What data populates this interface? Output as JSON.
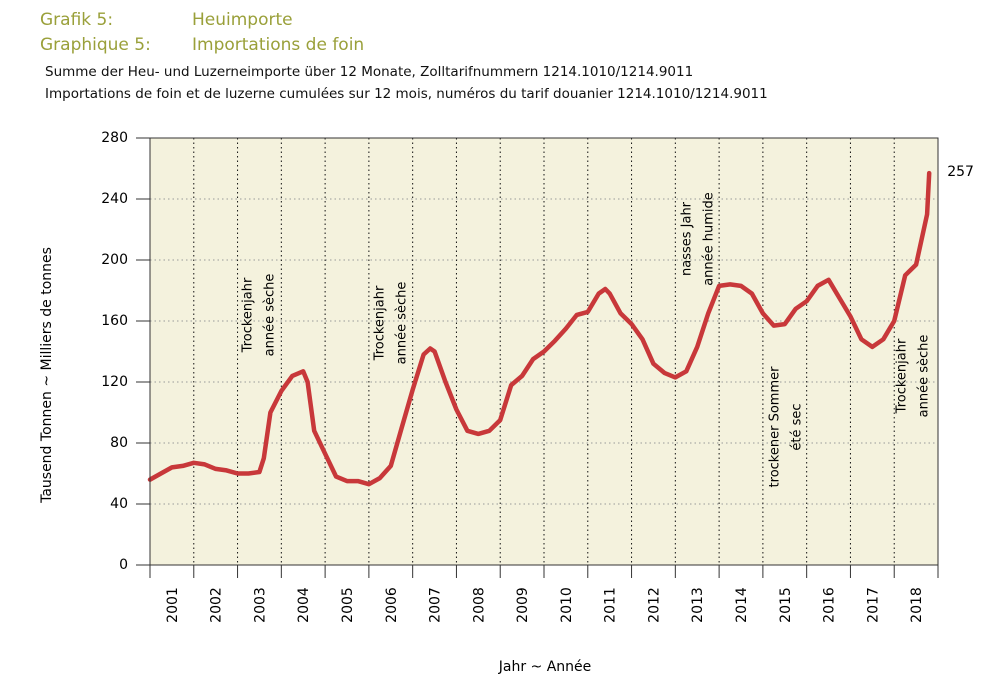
{
  "chart_data": {
    "type": "line",
    "title": [
      "Grafik 5:",
      "Heuimporte"
    ],
    "title2": [
      "Graphique 5:",
      "Importations de foin"
    ],
    "subtitle": [
      "Summe der Heu- und Luzerneimporte über 12 Monate, Zolltarifnummern 1214.1010/1214.9011",
      "Importations de foin et de luzerne cumulées sur 12 mois, numéros du tarif douanier 1214.1010/1214.9011"
    ],
    "y_label": "Tausend Tonnen  ~  Milliers de tonnes",
    "x_label": "Jahr  ~  Année",
    "categories": [
      "2001",
      "2002",
      "2003",
      "2004",
      "2005",
      "2006",
      "2007",
      "2008",
      "2009",
      "2010",
      "2011",
      "2012",
      "2013",
      "2014",
      "2015",
      "2016",
      "2017",
      "2018"
    ],
    "xlim": [
      2001,
      2019
    ],
    "ylim": [
      0,
      280
    ],
    "yticks": [
      0,
      40,
      80,
      120,
      160,
      200,
      240,
      280
    ],
    "grid": true,
    "annotations": [
      [
        "Trockenjahr",
        "année sèche"
      ],
      [
        "Trockenjahr",
        "année sèche"
      ],
      [
        "nasses Jahr",
        "année humide"
      ],
      [
        "trockener Sommer",
        "été sec"
      ],
      [
        "Trockenjahr",
        "année sèche"
      ]
    ],
    "series": [
      {
        "name": "Heuimporte",
        "color": "#c8383a",
        "x": [
          2001.0,
          2001.25,
          2001.5,
          2001.75,
          2002.0,
          2002.25,
          2002.5,
          2002.75,
          2003.0,
          2003.25,
          2003.5,
          2003.6,
          2003.75,
          2004.0,
          2004.25,
          2004.5,
          2004.6,
          2004.75,
          2005.0,
          2005.25,
          2005.5,
          2005.75,
          2006.0,
          2006.25,
          2006.5,
          2006.75,
          2007.0,
          2007.25,
          2007.4,
          2007.5,
          2007.75,
          2008.0,
          2008.25,
          2008.5,
          2008.75,
          2009.0,
          2009.25,
          2009.5,
          2009.75,
          2010.0,
          2010.25,
          2010.5,
          2010.75,
          2011.0,
          2011.25,
          2011.4,
          2011.5,
          2011.75,
          2012.0,
          2012.25,
          2012.5,
          2012.75,
          2013.0,
          2013.25,
          2013.5,
          2013.75,
          2014.0,
          2014.25,
          2014.5,
          2014.75,
          2015.0,
          2015.25,
          2015.5,
          2015.75,
          2016.0,
          2016.25,
          2016.5,
          2016.75,
          2017.0,
          2017.25,
          2017.5,
          2017.75,
          2018.0,
          2018.25,
          2018.5,
          2018.75,
          2018.8
        ],
        "values": [
          56,
          60,
          64,
          65,
          67,
          66,
          63,
          62,
          60,
          60,
          61,
          70,
          100,
          114,
          124,
          127,
          120,
          88,
          73,
          58,
          55,
          55,
          53,
          57,
          65,
          90,
          115,
          138,
          142,
          140,
          120,
          102,
          88,
          86,
          88,
          95,
          118,
          124,
          135,
          140,
          147,
          155,
          164,
          166,
          178,
          181,
          178,
          165,
          158,
          148,
          132,
          126,
          123,
          127,
          143,
          165,
          183,
          184,
          183,
          178,
          165,
          157,
          158,
          168,
          173,
          183,
          187,
          175,
          163,
          148,
          143,
          148,
          160,
          190,
          197,
          230,
          257
        ]
      }
    ]
  }
}
